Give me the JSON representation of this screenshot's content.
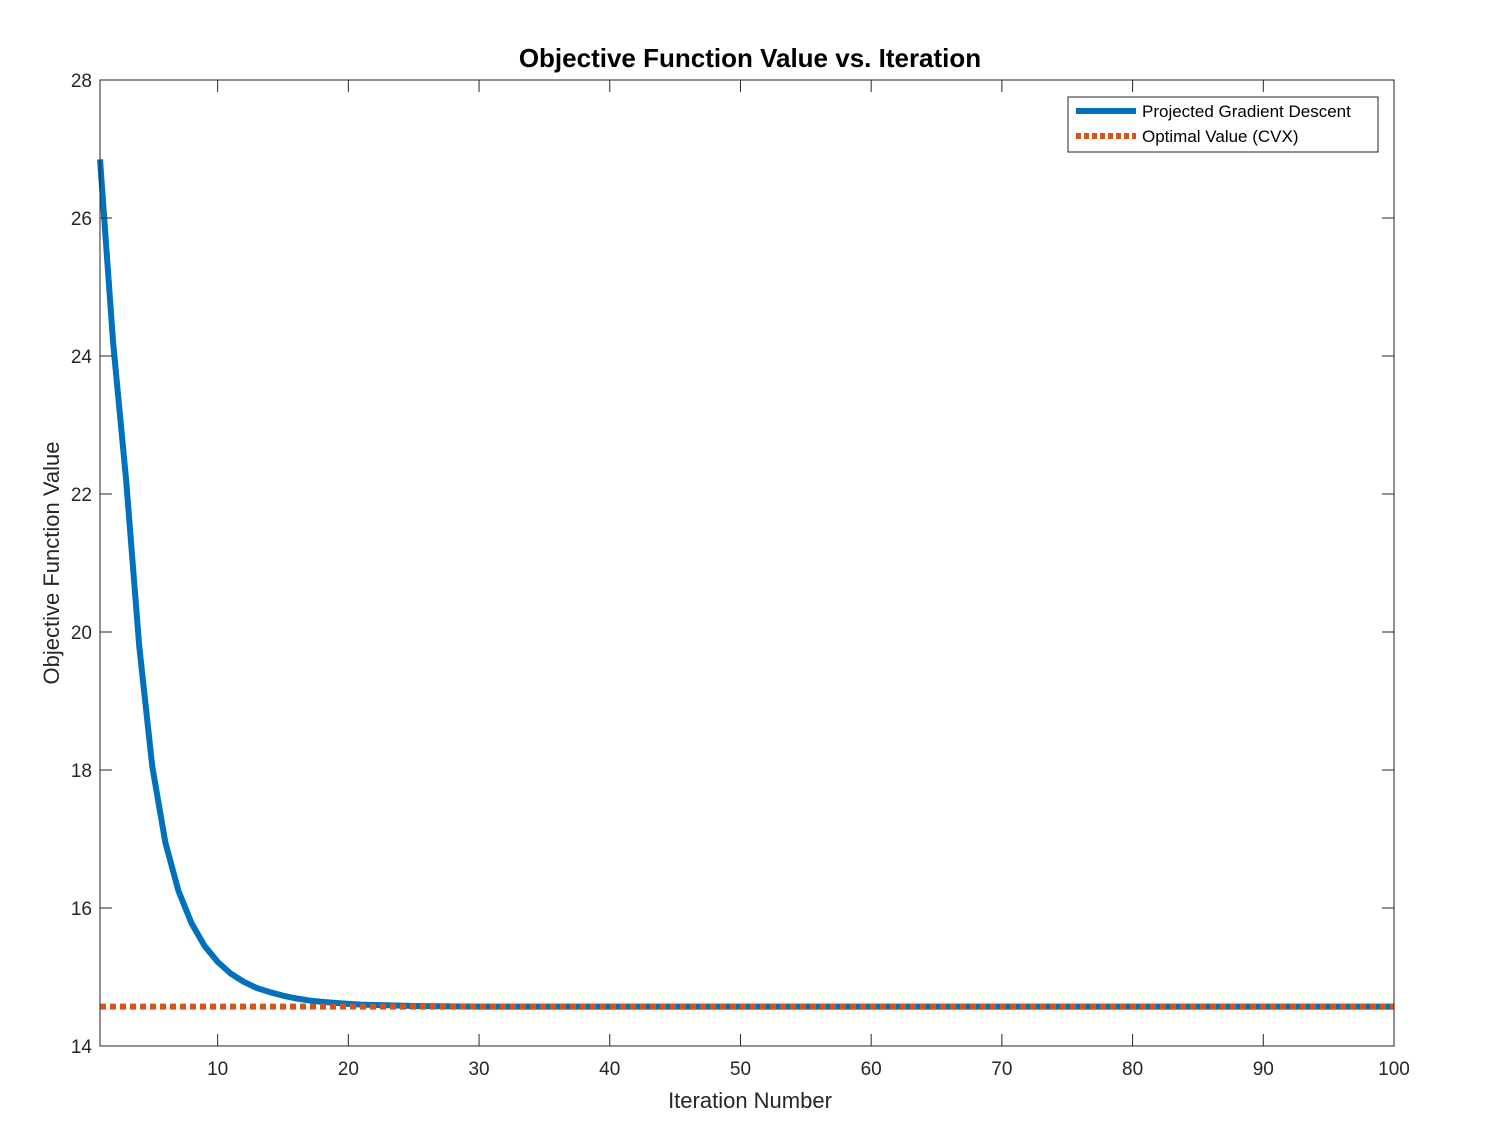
{
  "chart_data": {
    "type": "line",
    "title": "Objective Function Value vs. Iteration",
    "xlabel": "Iteration Number",
    "ylabel": "Objective Function Value",
    "xlim": [
      1,
      100
    ],
    "ylim": [
      14,
      28
    ],
    "xticks": [
      10,
      20,
      30,
      40,
      50,
      60,
      70,
      80,
      90,
      100
    ],
    "yticks": [
      14,
      16,
      18,
      20,
      22,
      24,
      26,
      28
    ],
    "grid": false,
    "legend": "top-right",
    "series": [
      {
        "name": "Projected Gradient Descent",
        "color": "#0072BD",
        "style": "solid",
        "x": [
          1,
          2,
          3,
          4,
          5,
          6,
          7,
          8,
          9,
          10,
          11,
          12,
          13,
          14,
          15,
          16,
          17,
          18,
          19,
          20,
          21,
          22,
          23,
          24,
          25,
          26,
          27,
          28,
          29,
          30,
          31,
          32,
          33,
          34,
          35,
          36,
          37,
          38,
          39,
          40,
          41,
          42,
          43,
          44,
          45,
          46,
          47,
          48,
          49,
          50,
          51,
          52,
          53,
          54,
          55,
          56,
          57,
          58,
          59,
          60,
          61,
          62,
          63,
          64,
          65,
          66,
          67,
          68,
          69,
          70,
          71,
          72,
          73,
          74,
          75,
          76,
          77,
          78,
          79,
          80,
          81,
          82,
          83,
          84,
          85,
          86,
          87,
          88,
          89,
          90,
          91,
          92,
          93,
          94,
          95,
          96,
          97,
          98,
          99,
          100
        ],
        "y": [
          26.85,
          24.2,
          22.2,
          19.8,
          18.05,
          16.95,
          16.25,
          15.78,
          15.45,
          15.22,
          15.05,
          14.93,
          14.84,
          14.78,
          14.73,
          14.69,
          14.66,
          14.64,
          14.625,
          14.61,
          14.6,
          14.595,
          14.59,
          14.585,
          14.58,
          14.578,
          14.576,
          14.574,
          14.572,
          14.57,
          14.57,
          14.57,
          14.57,
          14.57,
          14.57,
          14.57,
          14.57,
          14.57,
          14.57,
          14.57,
          14.57,
          14.57,
          14.57,
          14.57,
          14.57,
          14.57,
          14.57,
          14.57,
          14.57,
          14.57,
          14.57,
          14.57,
          14.57,
          14.57,
          14.57,
          14.57,
          14.57,
          14.57,
          14.57,
          14.57,
          14.57,
          14.57,
          14.57,
          14.57,
          14.57,
          14.57,
          14.57,
          14.57,
          14.57,
          14.57,
          14.57,
          14.57,
          14.57,
          14.57,
          14.57,
          14.57,
          14.57,
          14.57,
          14.57,
          14.57,
          14.57,
          14.57,
          14.57,
          14.57,
          14.57,
          14.57,
          14.57,
          14.57,
          14.57,
          14.57,
          14.57,
          14.57,
          14.57,
          14.57,
          14.57,
          14.57,
          14.57,
          14.57,
          14.57,
          14.57
        ]
      },
      {
        "name": "Optimal Value (CVX)",
        "color": "#D95319",
        "style": "dotted",
        "x": [
          1,
          100
        ],
        "y": [
          14.57,
          14.57
        ]
      }
    ]
  }
}
